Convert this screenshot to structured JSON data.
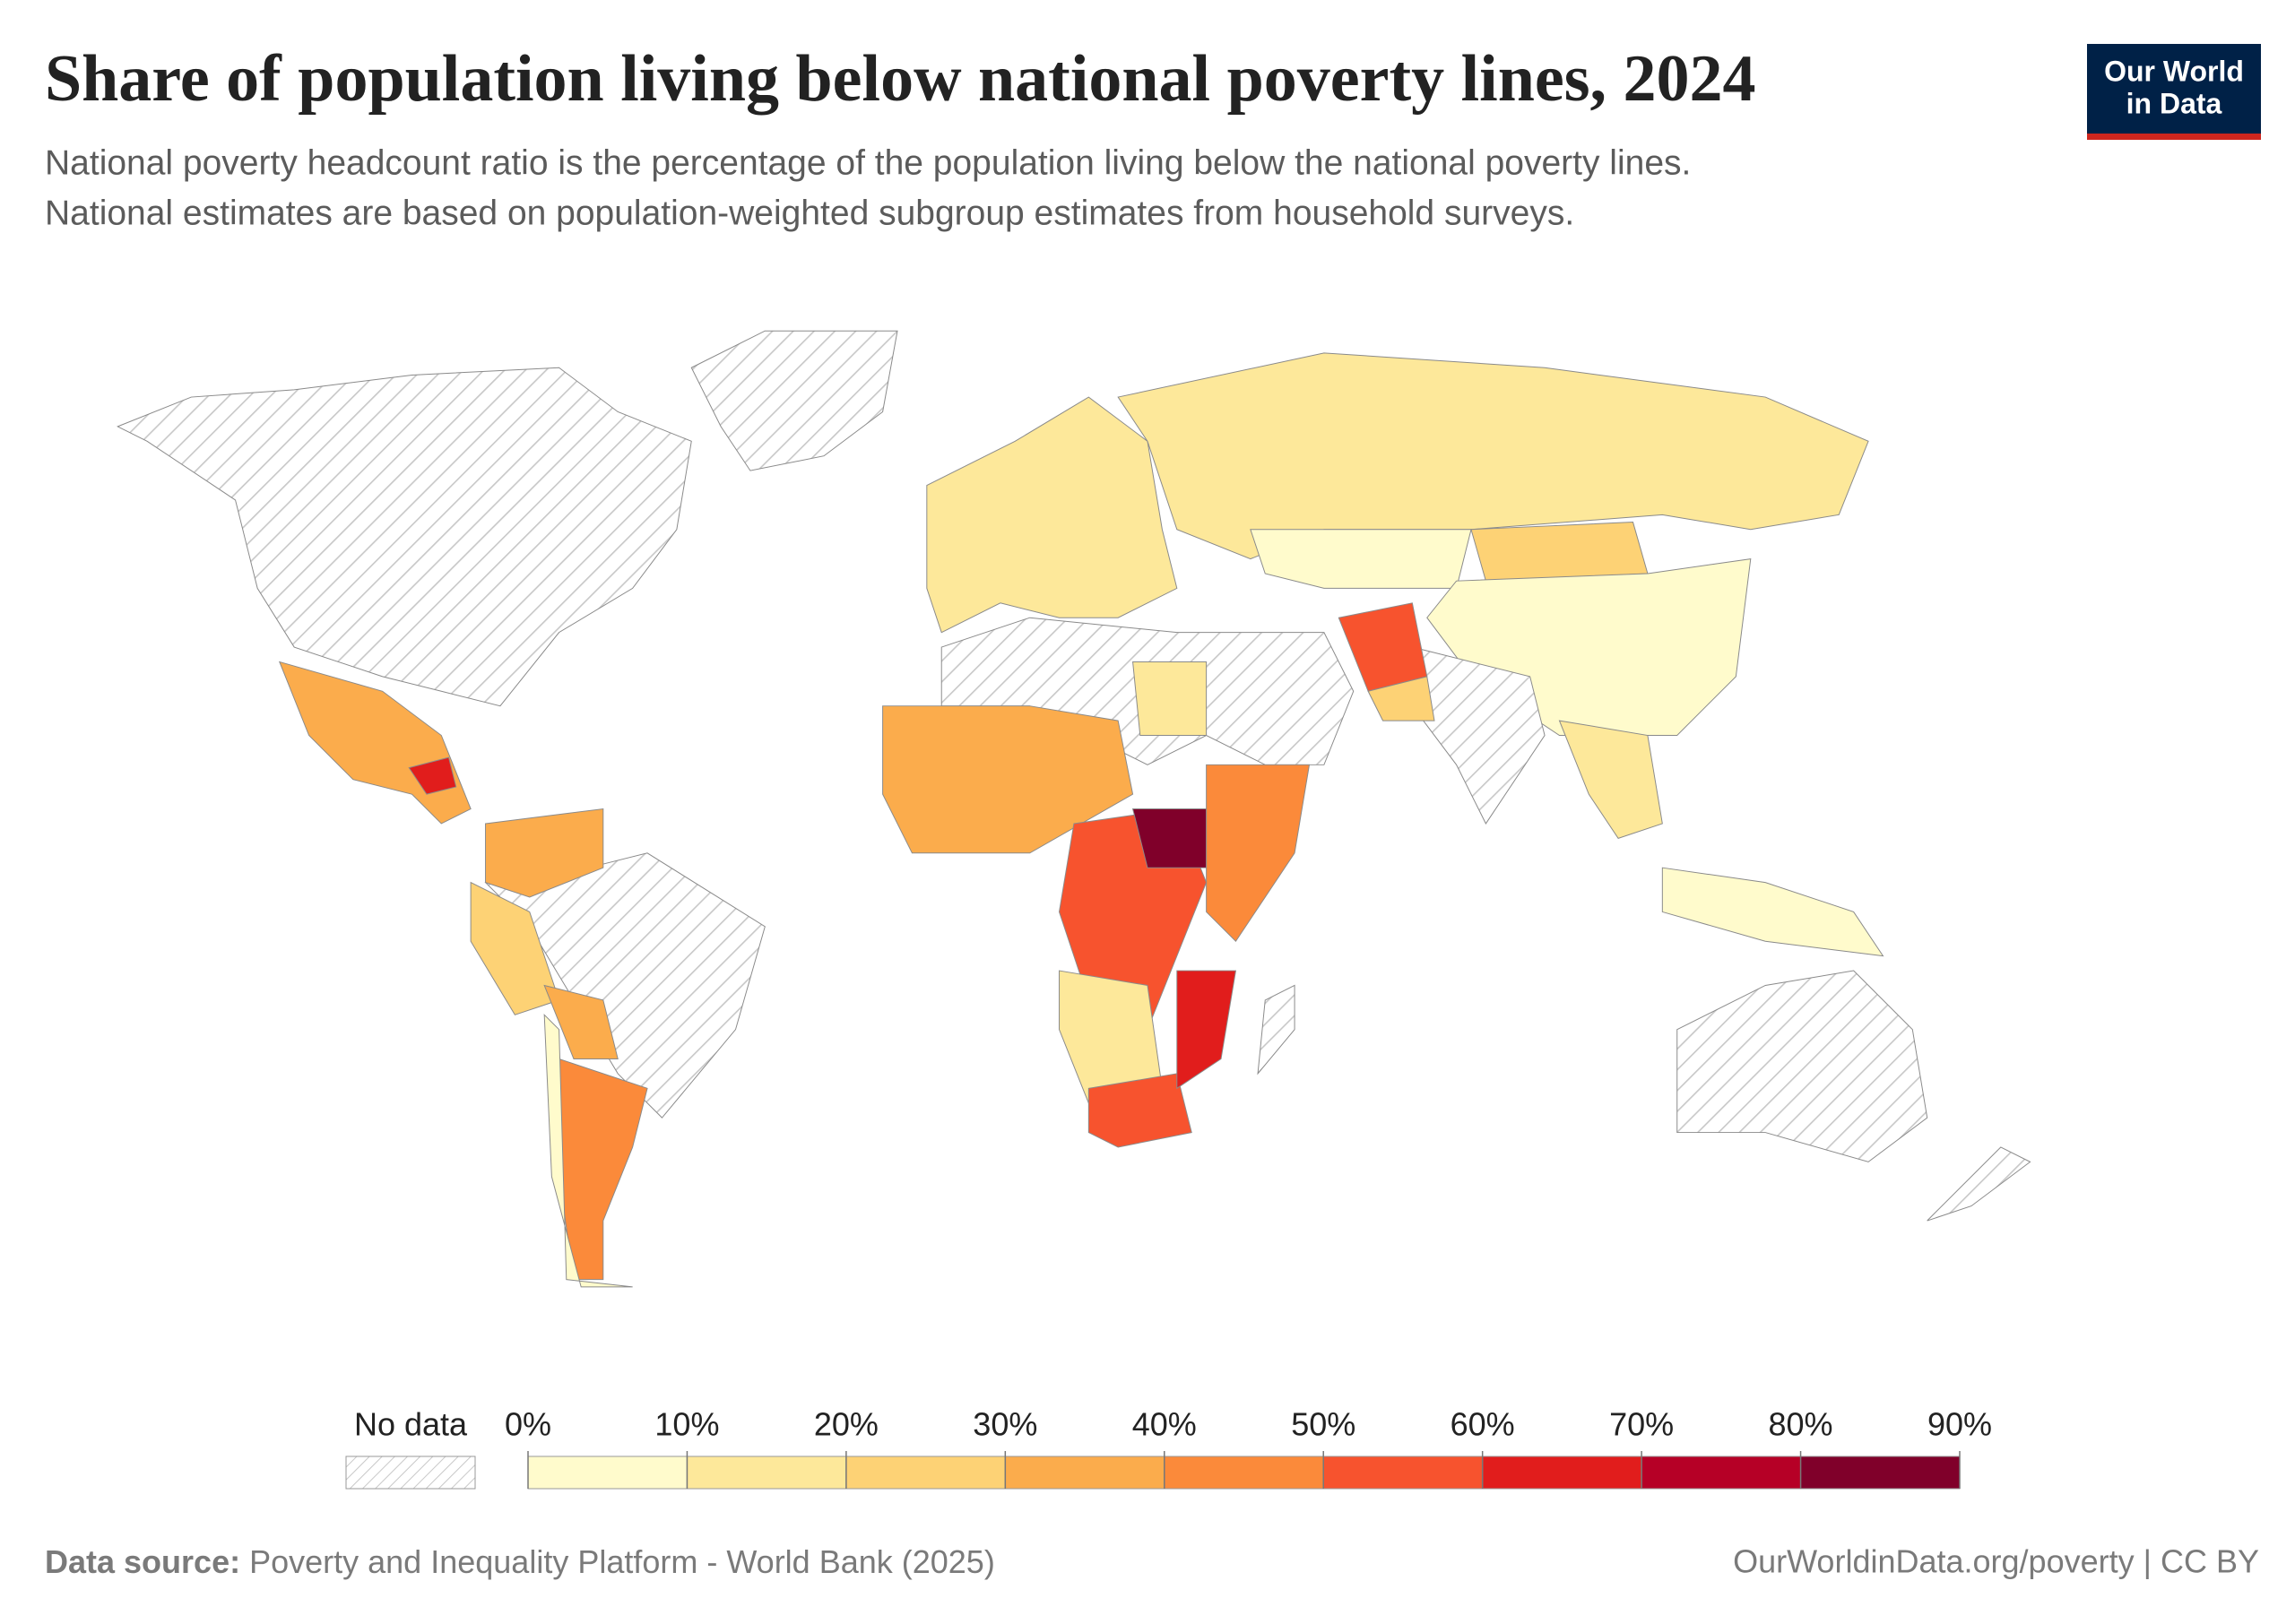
{
  "header": {
    "title": "Share of population living below national poverty lines, 2024",
    "subtitle": [
      "National poverty headcount ratio is the percentage of the population living below the national poverty lines.",
      "National estimates are based on population-weighted subgroup estimates from household surveys."
    ]
  },
  "logo": [
    "Our World",
    "in Data"
  ],
  "legend": {
    "no_data": "No data",
    "ticks": [
      {
        "value": 0,
        "label": "0%"
      },
      {
        "value": 10,
        "label": "10%"
      },
      {
        "value": 20,
        "label": "20%"
      },
      {
        "value": 30,
        "label": "30%"
      },
      {
        "value": 40,
        "label": "40%"
      },
      {
        "value": 50,
        "label": "50%"
      },
      {
        "value": 60,
        "label": "60%"
      },
      {
        "value": 70,
        "label": "70%"
      },
      {
        "value": 80,
        "label": "80%"
      },
      {
        "value": 90,
        "label": "90%"
      }
    ],
    "colors": [
      "#fffbcc",
      "#fde89a",
      "#fdd275",
      "#fbac4c",
      "#fb8a3a",
      "#f7532e",
      "#e11d1c",
      "#b60026",
      "#80002a"
    ]
  },
  "footer": {
    "source_label": "Data source:",
    "source": "Poverty and Inequality Platform - World Bank (2025)",
    "url": "OurWorldinData.org/poverty | CC BY"
  }
}
